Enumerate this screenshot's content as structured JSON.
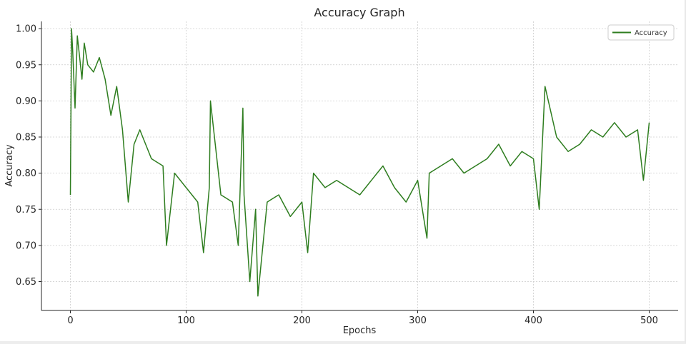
{
  "chart_data": {
    "type": "line",
    "title": "Accuracy Graph",
    "xlabel": "Epochs",
    "ylabel": "Accuracy",
    "xlim": [
      -25,
      525
    ],
    "ylim": [
      0.61,
      1.01
    ],
    "xticks": [
      0,
      100,
      200,
      300,
      400,
      500
    ],
    "yticks": [
      0.65,
      0.7,
      0.75,
      0.8,
      0.85,
      0.9,
      0.95,
      1.0
    ],
    "xtick_labels": [
      "0",
      "100",
      "200",
      "300",
      "400",
      "500"
    ],
    "ytick_labels": [
      "0.65",
      "0.70",
      "0.75",
      "0.80",
      "0.85",
      "0.90",
      "0.95",
      "1.00"
    ],
    "grid": true,
    "legend": "top-right",
    "colors": {
      "line": "#2e7d1f",
      "grid": "#cccccc",
      "axis": "#262626"
    },
    "series": [
      {
        "name": "Accuracy",
        "x": [
          0,
          1,
          2,
          4,
          6,
          8,
          10,
          12,
          15,
          20,
          25,
          30,
          35,
          40,
          45,
          50,
          55,
          60,
          70,
          80,
          83,
          90,
          100,
          110,
          115,
          120,
          121,
          130,
          140,
          145,
          149,
          150,
          155,
          160,
          162,
          170,
          180,
          190,
          200,
          205,
          210,
          220,
          230,
          240,
          250,
          260,
          270,
          280,
          290,
          300,
          308,
          310,
          320,
          330,
          340,
          350,
          360,
          370,
          380,
          390,
          400,
          405,
          410,
          420,
          430,
          440,
          450,
          460,
          470,
          480,
          490,
          495,
          500
        ],
        "y": [
          0.77,
          1.0,
          0.97,
          0.89,
          0.99,
          0.96,
          0.93,
          0.98,
          0.95,
          0.94,
          0.96,
          0.93,
          0.88,
          0.92,
          0.86,
          0.76,
          0.84,
          0.86,
          0.82,
          0.81,
          0.7,
          0.8,
          0.78,
          0.76,
          0.69,
          0.78,
          0.9,
          0.77,
          0.76,
          0.7,
          0.89,
          0.77,
          0.65,
          0.75,
          0.63,
          0.76,
          0.77,
          0.74,
          0.76,
          0.69,
          0.8,
          0.78,
          0.79,
          0.78,
          0.77,
          0.79,
          0.81,
          0.78,
          0.76,
          0.79,
          0.71,
          0.8,
          0.81,
          0.82,
          0.8,
          0.81,
          0.82,
          0.84,
          0.81,
          0.83,
          0.82,
          0.75,
          0.92,
          0.85,
          0.83,
          0.84,
          0.86,
          0.85,
          0.87,
          0.85,
          0.86,
          0.79,
          0.87
        ]
      }
    ]
  }
}
